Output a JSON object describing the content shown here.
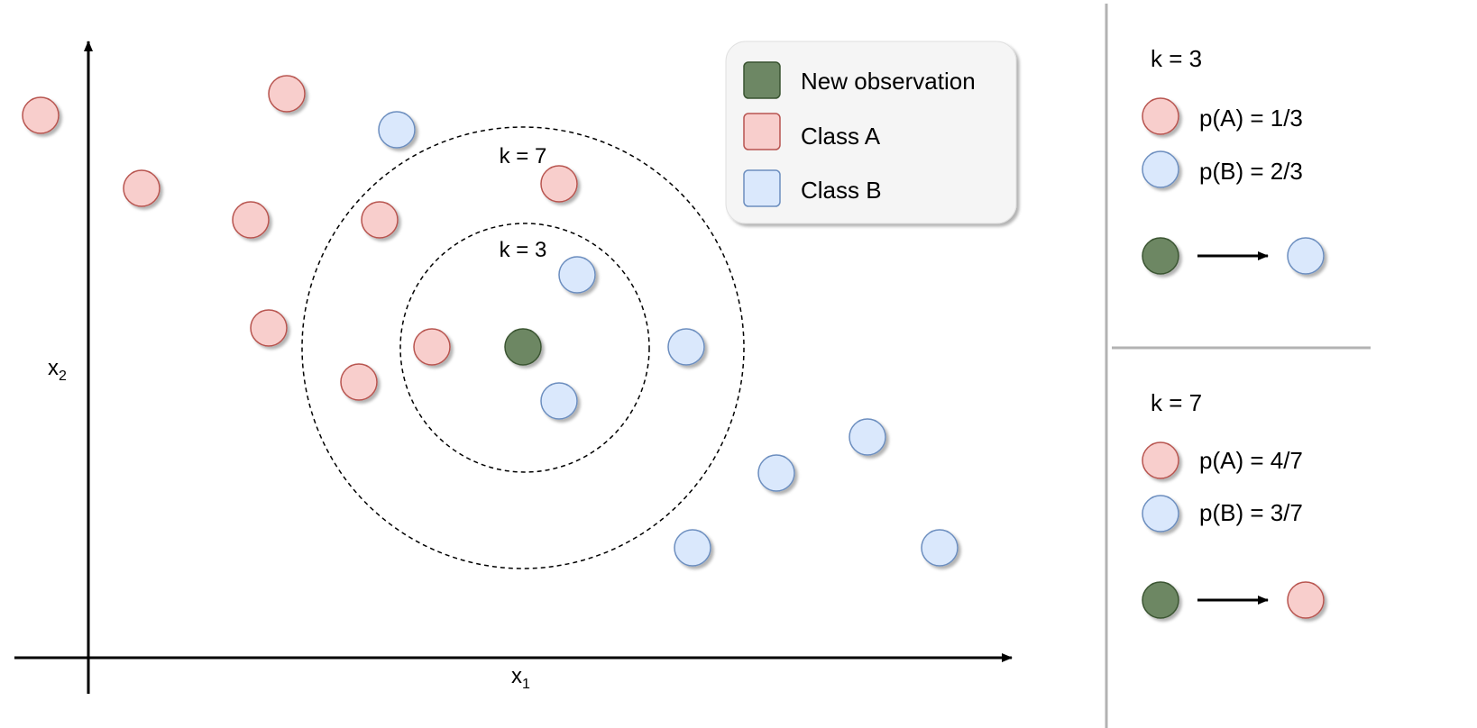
{
  "colors": {
    "class_a_fill": "#f8cecc",
    "class_a_stroke": "#b85450",
    "class_b_fill": "#dae8fc",
    "class_b_stroke": "#6c8ebf",
    "new_fill": "#6d8764",
    "new_stroke": "#3a5431",
    "legend_bg": "#f5f5f5",
    "divider": "#b3b3b3"
  },
  "axes": {
    "x_label": "x",
    "x_sub": "1",
    "y_label": "x",
    "y_sub": "2"
  },
  "rings": [
    {
      "label": "k = 7"
    },
    {
      "label": "k = 3"
    }
  ],
  "legend": {
    "items": [
      {
        "label": "New observation",
        "kind": "new"
      },
      {
        "label": "Class A",
        "kind": "a"
      },
      {
        "label": "Class B",
        "kind": "b"
      }
    ]
  },
  "panels": [
    {
      "title": "k = 3",
      "prob_a": "p(A) = 1/3",
      "prob_b": "p(B) = 2/3",
      "result": "b"
    },
    {
      "title": "k = 7",
      "prob_a": "p(A) = 4/7",
      "prob_b": "p(B) = 3/7",
      "result": "a"
    }
  ]
}
